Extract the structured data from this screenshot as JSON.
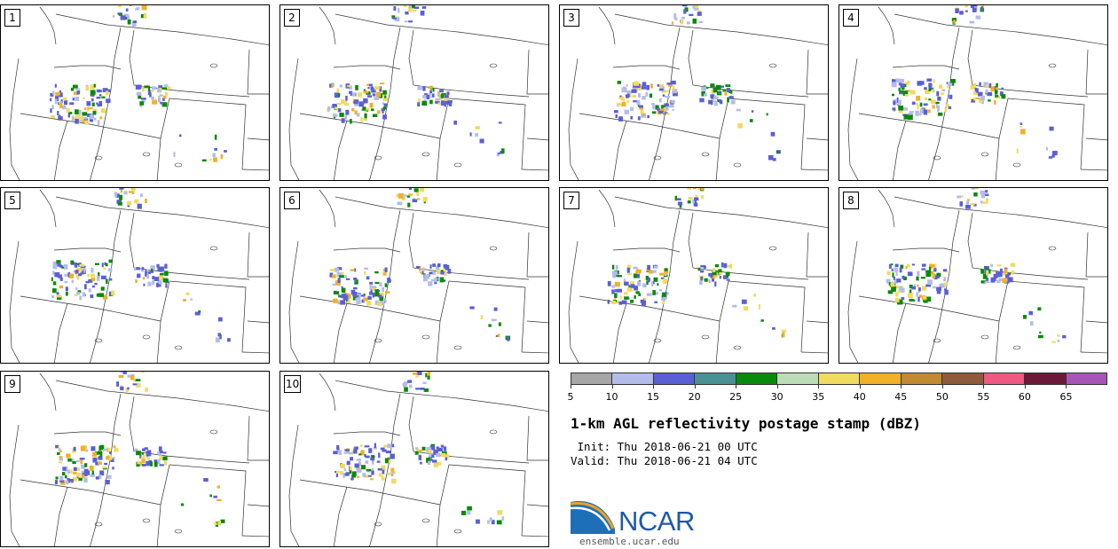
{
  "panels": [
    {
      "label": "1",
      "variant": 0
    },
    {
      "label": "2",
      "variant": 1
    },
    {
      "label": "3",
      "variant": 2
    },
    {
      "label": "4",
      "variant": 3
    },
    {
      "label": "5",
      "variant": 4
    },
    {
      "label": "6",
      "variant": 5
    },
    {
      "label": "7",
      "variant": 6
    },
    {
      "label": "8",
      "variant": 7
    },
    {
      "label": "9",
      "variant": 8
    },
    {
      "label": "10",
      "variant": 9
    }
  ],
  "colorbar": {
    "colors": [
      "#a6a6a6",
      "#b4bcea",
      "#5a5fd6",
      "#4b9095",
      "#0a8a0a",
      "#bedbb8",
      "#f0db60",
      "#f0b028",
      "#c08a30",
      "#8e5a3a",
      "#f05a82",
      "#6a1a38",
      "#a855b8"
    ],
    "tick_labels": [
      "5",
      "10",
      "15",
      "20",
      "25",
      "30",
      "35",
      "40",
      "45",
      "50",
      "55",
      "60",
      "65"
    ]
  },
  "title": "1-km AGL reflectivity postage stamp (dBZ)",
  "init_line": " Init: Thu 2018-06-21 00 UTC",
  "valid_line": "Valid: Thu 2018-06-21 04 UTC",
  "logo": {
    "text": "NCAR",
    "site": "ensemble.ucar.edu",
    "brand_color": "#1d5aa6"
  },
  "map_icon": "us-pacific-northwest-map"
}
